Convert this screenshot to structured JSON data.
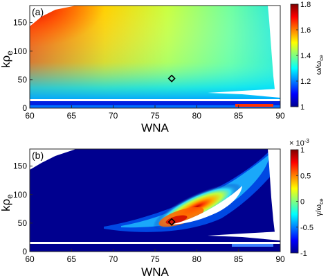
{
  "chart_data": [
    {
      "type": "heatmap",
      "panel_label": "(a)",
      "xlabel": "WNA",
      "ylabel_main": "kρ",
      "ylabel_sub": "e",
      "xlim": [
        60,
        90
      ],
      "ylim": [
        0,
        180
      ],
      "xticks": [
        "60",
        "65",
        "70",
        "75",
        "80",
        "85",
        "90"
      ],
      "yticks": [
        "0",
        "50",
        "100",
        "150"
      ],
      "colorbar": {
        "label": "ω/ω",
        "label_sub": "ce",
        "range": [
          1,
          1.8
        ],
        "ticks": [
          "1",
          "1.2",
          "1.4",
          "1.6",
          "1.8"
        ],
        "colormap": "jet"
      },
      "marker": {
        "x": 77,
        "y": 52,
        "shape": "diamond"
      },
      "notes": "Frequency is highest (~1.8) at WNA 60, kρe 180 and decreases toward large WNA and small kρe (~1.0); white (no solution) regions at upper-left corner, right edge above about 20, and a thin band near kρe about 5."
    },
    {
      "type": "heatmap",
      "panel_label": "(b)",
      "xlabel": "WNA",
      "ylabel_main": "kρ",
      "ylabel_sub": "e",
      "xlim": [
        60,
        90
      ],
      "ylim": [
        0,
        180
      ],
      "xticks": [
        "60",
        "65",
        "70",
        "75",
        "80",
        "85",
        "90"
      ],
      "yticks": [
        "0",
        "50",
        "100",
        "150"
      ],
      "colorbar": {
        "label": "γ/ω",
        "label_sub": "ce",
        "exponent": "× 10",
        "exponent_power": "-3",
        "range": [
          -1,
          1
        ],
        "ticks": [
          "-1",
          "-0.5",
          "0",
          "0.5",
          "1"
        ],
        "colormap": "jet"
      },
      "marker": {
        "x": 77,
        "y": 52,
        "shape": "diamond"
      },
      "contour_level": 0,
      "notes": "Growth rate is near -1 (dark blue) almost everywhere; a positive elongated band runs from about WNA 74, kρe 45 up to WNA 86, kρe 115, peaking near 1 around WNA 77, kρe 52; a zero-level contour outlines it."
    }
  ]
}
